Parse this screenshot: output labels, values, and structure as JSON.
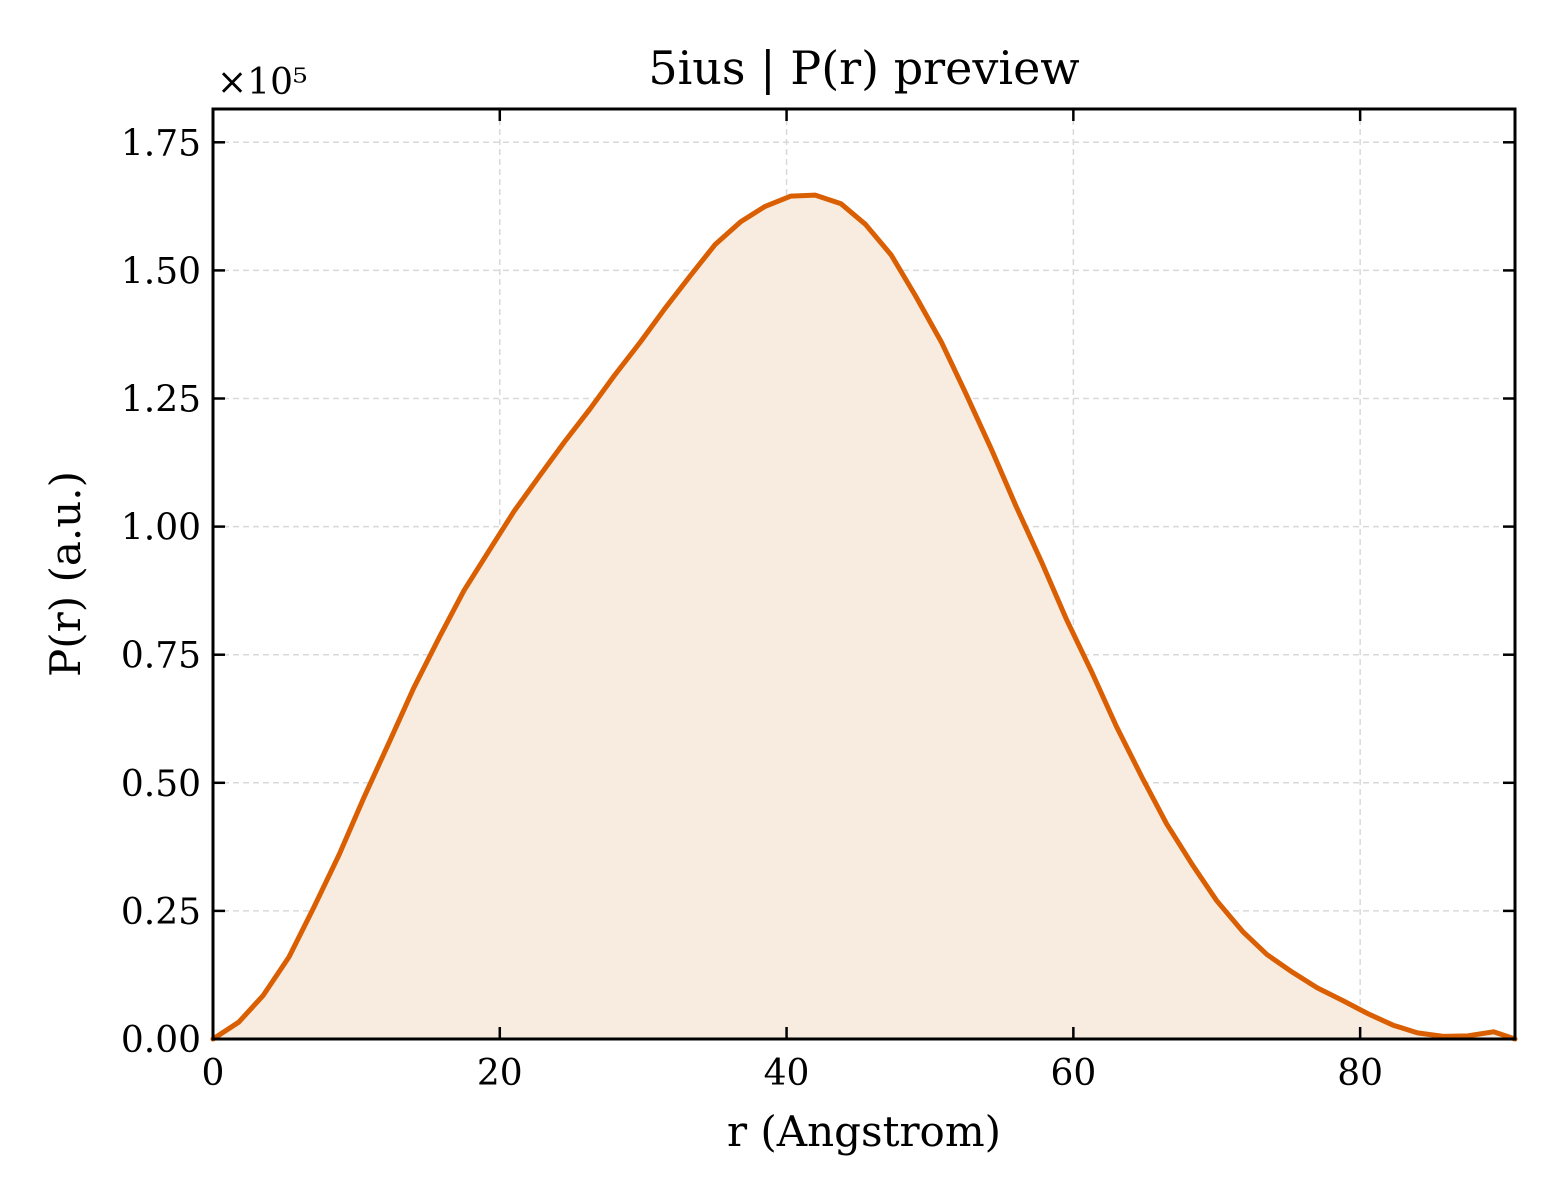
{
  "chart_data": {
    "type": "area",
    "title": "5ius | P(r) preview",
    "xlabel": "r (Angstrom)",
    "ylabel": "P(r) (a.u.)",
    "y_multiplier": "×10⁵",
    "xlim": [
      0,
      90.8
    ],
    "ylim": [
      0,
      1.815
    ],
    "x_ticks": [
      "0",
      "20",
      "40",
      "60",
      "80"
    ],
    "x_tick_values": [
      0,
      20,
      40,
      60,
      80
    ],
    "y_ticks": [
      "0.00",
      "0.25",
      "0.50",
      "0.75",
      "1.00",
      "1.25",
      "1.50",
      "1.75"
    ],
    "y_tick_values": [
      0,
      0.25,
      0.5,
      0.75,
      1.0,
      1.25,
      1.5,
      1.75
    ],
    "grid": true,
    "line_color": "#d95f02",
    "fill_color": "#f8ebe0",
    "series": [
      {
        "x": [
          0,
          1.8,
          3.5,
          5.3,
          7.0,
          8.8,
          10.5,
          12.3,
          14.0,
          15.8,
          17.5,
          19.3,
          21.0,
          22.8,
          24.5,
          26.3,
          28.0,
          29.8,
          31.5,
          33.3,
          35.0,
          36.8,
          38.5,
          40.3,
          42.0,
          43.8,
          45.5,
          47.3,
          49.0,
          50.8,
          52.5,
          54.3,
          56.0,
          57.8,
          59.5,
          61.3,
          63.0,
          64.8,
          66.5,
          68.3,
          70.0,
          71.8,
          73.5,
          75.3,
          77.0,
          78.8,
          80.5,
          82.3,
          84.0,
          85.8,
          87.5,
          89.3,
          90.8
        ],
        "y": [
          0.0,
          0.033,
          0.085,
          0.16,
          0.255,
          0.36,
          0.47,
          0.58,
          0.685,
          0.785,
          0.875,
          0.955,
          1.03,
          1.1,
          1.165,
          1.23,
          1.295,
          1.36,
          1.425,
          1.49,
          1.55,
          1.595,
          1.625,
          1.645,
          1.647,
          1.63,
          1.59,
          1.53,
          1.45,
          1.36,
          1.26,
          1.15,
          1.04,
          0.93,
          0.82,
          0.715,
          0.61,
          0.51,
          0.42,
          0.34,
          0.27,
          0.21,
          0.165,
          0.13,
          0.1,
          0.075,
          0.05,
          0.027,
          0.012,
          0.005,
          0.006,
          0.014,
          0.0
        ]
      }
    ]
  }
}
